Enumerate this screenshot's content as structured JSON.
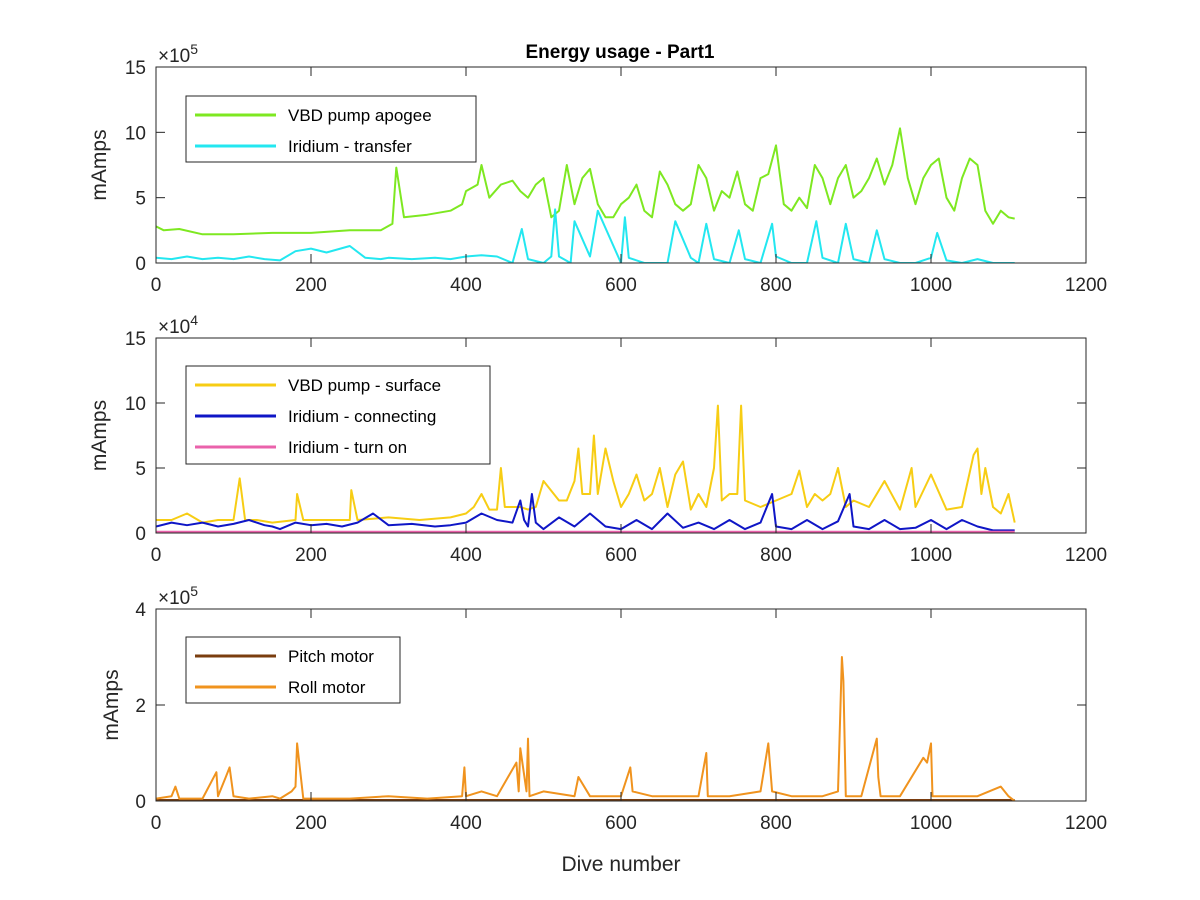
{
  "figure_title": "Energy usage - Part1",
  "colors": {
    "vbd_apogee": "#7ee821",
    "iridium_transfer": "#23e7f0",
    "vbd_surface": "#f7cd14",
    "iridium_connecting": "#0f16c6",
    "iridium_turn_on": "#ea62ab",
    "pitch_motor": "#7a3d0f",
    "roll_motor": "#f0931e"
  },
  "chart_data": [
    {
      "type": "line",
      "title": "Energy usage - Part1",
      "xlabel": "",
      "ylabel": "mAmps",
      "xlim": [
        0,
        1200
      ],
      "ylim": [
        0,
        15
      ],
      "y_exponent": "5",
      "x_ticks": [
        "0",
        "200",
        "400",
        "600",
        "800",
        "1000",
        "1200"
      ],
      "y_ticks": [
        "0",
        "5",
        "10",
        "15"
      ],
      "legend_position": "top-left",
      "grid": false,
      "series": [
        {
          "name": "VBD pump apogee",
          "color_key": "vbd_apogee",
          "x": [
            0,
            10,
            30,
            60,
            100,
            150,
            200,
            250,
            290,
            305,
            310,
            320,
            350,
            380,
            395,
            400,
            415,
            420,
            430,
            445,
            460,
            470,
            480,
            490,
            500,
            510,
            520,
            530,
            540,
            550,
            560,
            570,
            580,
            590,
            600,
            610,
            620,
            630,
            640,
            650,
            660,
            670,
            680,
            690,
            700,
            710,
            720,
            730,
            740,
            750,
            760,
            770,
            780,
            790,
            800,
            810,
            820,
            830,
            840,
            850,
            860,
            870,
            880,
            890,
            900,
            910,
            920,
            930,
            940,
            950,
            960,
            970,
            980,
            990,
            1000,
            1010,
            1020,
            1030,
            1040,
            1050,
            1060,
            1070,
            1080,
            1090,
            1100,
            1108
          ],
          "y": [
            2.8,
            2.5,
            2.6,
            2.2,
            2.2,
            2.3,
            2.3,
            2.5,
            2.5,
            3.0,
            7.3,
            3.5,
            3.7,
            4.0,
            4.5,
            5.5,
            6.0,
            7.5,
            5.0,
            6.0,
            6.3,
            5.5,
            5.0,
            6.0,
            6.5,
            3.5,
            4.0,
            7.5,
            4.5,
            6.5,
            7.2,
            4.5,
            3.5,
            3.5,
            4.5,
            5.0,
            6.0,
            4.0,
            3.5,
            7.0,
            6.0,
            4.5,
            4.0,
            4.5,
            7.5,
            6.5,
            4.0,
            5.5,
            5.0,
            7.0,
            4.5,
            4.0,
            6.5,
            6.8,
            9.0,
            4.5,
            4.0,
            5.0,
            4.2,
            7.5,
            6.5,
            4.5,
            6.5,
            7.5,
            5.0,
            5.5,
            6.5,
            8.0,
            6.0,
            7.5,
            10.3,
            6.5,
            4.5,
            6.5,
            7.5,
            8.0,
            5.0,
            4.0,
            6.5,
            8.0,
            7.5,
            4.0,
            3.0,
            4.0,
            3.5,
            3.4
          ]
        },
        {
          "name": "Iridium - transfer",
          "color_key": "iridium_transfer",
          "x": [
            0,
            20,
            40,
            60,
            80,
            100,
            120,
            140,
            160,
            180,
            200,
            220,
            250,
            270,
            290,
            300,
            330,
            360,
            380,
            400,
            420,
            440,
            460,
            472,
            480,
            500,
            510,
            515,
            520,
            535,
            540,
            560,
            570,
            600,
            605,
            610,
            630,
            660,
            670,
            690,
            700,
            710,
            720,
            740,
            752,
            760,
            780,
            795,
            800,
            820,
            840,
            852,
            860,
            880,
            890,
            900,
            920,
            930,
            940,
            960,
            980,
            1000,
            1008,
            1020,
            1040,
            1060,
            1080,
            1108
          ],
          "y": [
            0.4,
            0.3,
            0.5,
            0.3,
            0.4,
            0.3,
            0.5,
            0.3,
            0.2,
            0.9,
            1.1,
            0.8,
            1.3,
            0.4,
            0.3,
            0.4,
            0.3,
            0.4,
            0.3,
            0.5,
            0.6,
            0.5,
            0.0,
            2.6,
            0.3,
            0.0,
            0.5,
            4.1,
            0.5,
            0.0,
            3.2,
            0.5,
            4.0,
            0.0,
            3.5,
            0.4,
            0.0,
            0.0,
            3.2,
            0.4,
            0.0,
            3.0,
            0.3,
            0.0,
            2.5,
            0.3,
            0.0,
            3.0,
            0.5,
            0.0,
            0.0,
            3.2,
            0.4,
            0.0,
            3.0,
            0.3,
            0.0,
            2.5,
            0.3,
            0.0,
            0.0,
            0.4,
            2.3,
            0.2,
            0.0,
            0.3,
            0.0,
            0.0
          ]
        }
      ]
    },
    {
      "type": "line",
      "title": "",
      "xlabel": "",
      "ylabel": "mAmps",
      "xlim": [
        0,
        1200
      ],
      "ylim": [
        0,
        15
      ],
      "y_exponent": "4",
      "x_ticks": [
        "0",
        "200",
        "400",
        "600",
        "800",
        "1000",
        "1200"
      ],
      "y_ticks": [
        "0",
        "5",
        "10",
        "15"
      ],
      "legend_position": "top-left",
      "grid": false,
      "series": [
        {
          "name": "VBD pump - surface",
          "color_key": "vbd_surface",
          "x": [
            0,
            20,
            40,
            60,
            80,
            100,
            108,
            115,
            130,
            150,
            180,
            182,
            190,
            220,
            250,
            252,
            260,
            300,
            340,
            380,
            400,
            410,
            420,
            430,
            440,
            445,
            450,
            470,
            480,
            490,
            500,
            520,
            530,
            540,
            545,
            550,
            560,
            565,
            570,
            580,
            590,
            600,
            610,
            620,
            630,
            640,
            650,
            660,
            670,
            680,
            690,
            700,
            710,
            720,
            725,
            730,
            740,
            750,
            755,
            760,
            780,
            800,
            820,
            830,
            840,
            850,
            860,
            870,
            880,
            890,
            900,
            920,
            940,
            960,
            975,
            980,
            1000,
            1020,
            1040,
            1055,
            1060,
            1065,
            1070,
            1080,
            1090,
            1100,
            1108
          ],
          "y": [
            1.0,
            1.0,
            1.5,
            0.8,
            1.0,
            1.0,
            4.2,
            1.0,
            1.0,
            0.8,
            1.0,
            3.0,
            1.0,
            1.0,
            1.0,
            3.3,
            1.0,
            1.2,
            1.0,
            1.2,
            1.5,
            2.0,
            3.0,
            1.8,
            1.8,
            5.0,
            2.0,
            2.0,
            1.8,
            2.0,
            4.0,
            2.5,
            2.5,
            4.0,
            6.5,
            3.0,
            3.0,
            7.5,
            3.0,
            6.5,
            4.0,
            2.0,
            3.0,
            4.5,
            2.5,
            3.0,
            5.0,
            2.0,
            4.5,
            5.5,
            1.8,
            3.0,
            2.0,
            5.0,
            9.8,
            2.5,
            3.0,
            3.0,
            9.8,
            2.5,
            2.0,
            2.5,
            3.0,
            4.8,
            2.0,
            3.0,
            2.5,
            3.0,
            5.0,
            2.0,
            2.5,
            2.0,
            4.0,
            1.8,
            5.0,
            2.0,
            4.5,
            1.8,
            2.0,
            6.0,
            6.5,
            3.0,
            5.0,
            2.0,
            1.5,
            3.0,
            0.8
          ]
        },
        {
          "name": "Iridium - connecting",
          "color_key": "iridium_connecting",
          "x": [
            0,
            20,
            40,
            60,
            80,
            100,
            120,
            140,
            150,
            160,
            180,
            200,
            220,
            240,
            260,
            280,
            300,
            330,
            360,
            380,
            400,
            420,
            440,
            460,
            470,
            475,
            480,
            485,
            490,
            500,
            520,
            540,
            560,
            580,
            600,
            620,
            640,
            660,
            680,
            700,
            720,
            740,
            760,
            780,
            795,
            800,
            820,
            840,
            860,
            880,
            895,
            900,
            920,
            940,
            960,
            980,
            1000,
            1020,
            1040,
            1060,
            1080,
            1108
          ],
          "y": [
            0.5,
            0.8,
            0.6,
            0.8,
            0.5,
            0.7,
            1.0,
            0.6,
            0.5,
            0.3,
            0.8,
            0.6,
            0.7,
            0.5,
            0.8,
            1.5,
            0.6,
            0.7,
            0.5,
            0.6,
            0.8,
            1.5,
            1.0,
            0.8,
            2.5,
            1.0,
            0.5,
            3.0,
            0.8,
            0.3,
            1.2,
            0.5,
            1.5,
            0.5,
            0.3,
            1.0,
            0.3,
            1.5,
            0.4,
            0.8,
            0.3,
            1.0,
            0.3,
            0.8,
            3.0,
            0.5,
            0.3,
            1.0,
            0.3,
            0.9,
            3.0,
            0.5,
            0.3,
            1.0,
            0.3,
            0.4,
            1.0,
            0.3,
            1.0,
            0.5,
            0.2,
            0.2
          ]
        },
        {
          "name": "Iridium - turn on",
          "color_key": "iridium_turn_on",
          "x": [
            0,
            100,
            200,
            300,
            400,
            500,
            600,
            700,
            800,
            900,
            1000,
            1108
          ],
          "y": [
            0.1,
            0.1,
            0.1,
            0.1,
            0.1,
            0.1,
            0.1,
            0.1,
            0.1,
            0.1,
            0.1,
            0.1
          ]
        }
      ]
    },
    {
      "type": "line",
      "title": "",
      "xlabel": "Dive number",
      "ylabel": "mAmps",
      "xlim": [
        0,
        1200
      ],
      "ylim": [
        0,
        4
      ],
      "y_exponent": "5",
      "x_ticks": [
        "0",
        "200",
        "400",
        "600",
        "800",
        "1000",
        "1200"
      ],
      "y_ticks": [
        "0",
        "2",
        "4"
      ],
      "legend_position": "top-left",
      "grid": false,
      "series": [
        {
          "name": "Pitch motor",
          "color_key": "pitch_motor",
          "x": [
            0,
            100,
            200,
            300,
            400,
            500,
            600,
            700,
            800,
            900,
            1000,
            1108
          ],
          "y": [
            0.02,
            0.02,
            0.02,
            0.02,
            0.02,
            0.02,
            0.02,
            0.02,
            0.02,
            0.02,
            0.02,
            0.02
          ]
        },
        {
          "name": "Roll motor",
          "color_key": "roll_motor",
          "x": [
            0,
            20,
            25,
            30,
            60,
            78,
            80,
            90,
            95,
            100,
            120,
            150,
            160,
            175,
            180,
            182,
            190,
            250,
            300,
            350,
            395,
            398,
            400,
            420,
            440,
            465,
            468,
            470,
            478,
            480,
            482,
            500,
            540,
            545,
            560,
            600,
            612,
            615,
            640,
            700,
            710,
            712,
            740,
            780,
            790,
            792,
            795,
            820,
            860,
            880,
            885,
            887,
            890,
            910,
            930,
            932,
            935,
            960,
            990,
            995,
            1000,
            1002,
            1020,
            1060,
            1090,
            1100,
            1108
          ],
          "y": [
            0.05,
            0.1,
            0.3,
            0.05,
            0.05,
            0.6,
            0.1,
            0.5,
            0.7,
            0.1,
            0.05,
            0.1,
            0.05,
            0.2,
            0.3,
            1.2,
            0.05,
            0.05,
            0.1,
            0.05,
            0.1,
            0.7,
            0.1,
            0.2,
            0.1,
            0.8,
            0.2,
            1.1,
            0.2,
            1.3,
            0.1,
            0.2,
            0.1,
            0.5,
            0.1,
            0.1,
            0.7,
            0.2,
            0.1,
            0.1,
            1.0,
            0.1,
            0.1,
            0.2,
            1.2,
            0.8,
            0.2,
            0.1,
            0.1,
            0.2,
            3.0,
            2.5,
            0.1,
            0.1,
            1.3,
            0.5,
            0.1,
            0.1,
            0.9,
            0.8,
            1.2,
            0.1,
            0.1,
            0.1,
            0.3,
            0.1,
            0.0
          ]
        }
      ]
    }
  ]
}
